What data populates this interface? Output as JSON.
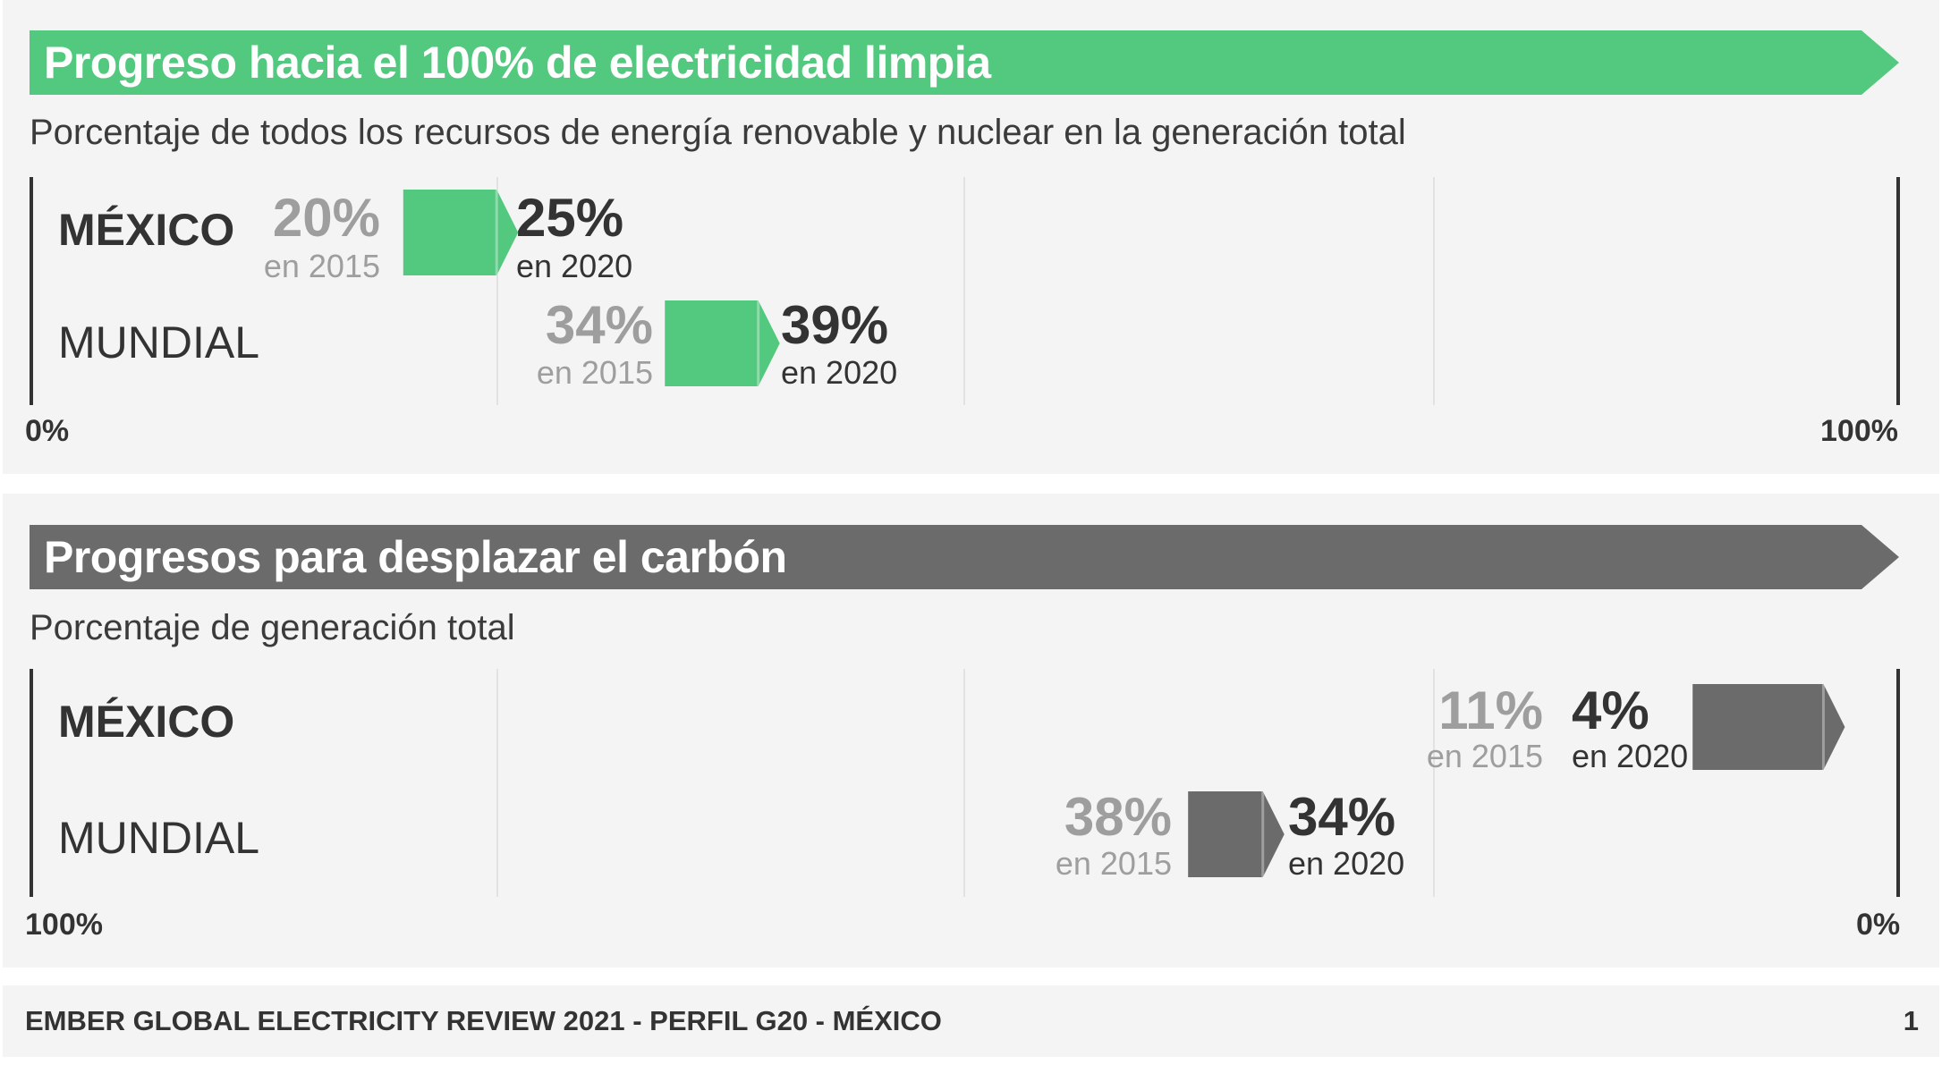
{
  "colors": {
    "clean": "#52c97e",
    "coal": "#6b6b6b",
    "old_text": "#9e9e9e",
    "text": "#333333"
  },
  "chart_data": [
    {
      "type": "bar",
      "title": "Progreso hacia el 100% de electricidad limpia",
      "subtitle": "Porcentaje de todos los recursos de energía renovable y nuclear en la generación total",
      "axis": {
        "min_label": "0%",
        "max_label": "100%",
        "min": 0,
        "max": 100,
        "reversed": false
      },
      "rows": [
        {
          "name": "MÉXICO",
          "bold": true,
          "from": 20,
          "to": 25,
          "from_label": "20%",
          "to_label": "25%",
          "from_year": "en 2015",
          "to_year": "en 2020"
        },
        {
          "name": "MUNDIAL",
          "bold": false,
          "from": 34,
          "to": 39,
          "from_label": "34%",
          "to_label": "39%",
          "from_year": "en 2015",
          "to_year": "en 2020"
        }
      ]
    },
    {
      "type": "bar",
      "title": "Progresos para desplazar el carbón",
      "subtitle": "Porcentaje de generación total",
      "axis": {
        "min_label": "100%",
        "max_label": "0%",
        "min": 100,
        "max": 0,
        "reversed": true
      },
      "rows": [
        {
          "name": "MÉXICO",
          "bold": true,
          "from": 11,
          "to": 4,
          "from_label": "11%",
          "to_label": "4%",
          "from_year": "en 2015",
          "to_year": "en 2020"
        },
        {
          "name": "MUNDIAL",
          "bold": false,
          "from": 38,
          "to": 34,
          "from_label": "38%",
          "to_label": "34%",
          "from_year": "en 2015",
          "to_year": "en 2020"
        }
      ]
    }
  ],
  "footer": {
    "text": "EMBER GLOBAL ELECTRICITY REVIEW 2021 - PERFIL G20 - MÉXICO",
    "page": "1"
  }
}
